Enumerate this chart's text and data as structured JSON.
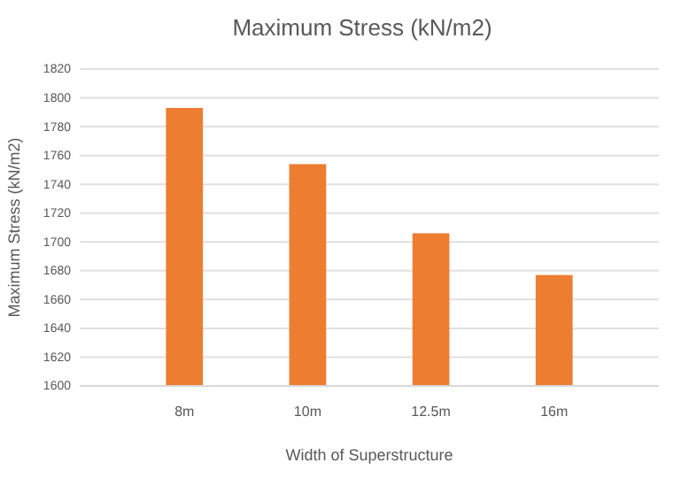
{
  "chart_data": {
    "type": "bar",
    "title": "Maximum Stress (kN/m2)",
    "xlabel": "Width of Superstructure",
    "ylabel": "Maximum Stress (kN/m2)",
    "categories": [
      "8m",
      "10m",
      "12.5m",
      "16m"
    ],
    "values": [
      1793,
      1754,
      1706,
      1677
    ],
    "color": "#ed7d31",
    "ylim": [
      1600,
      1820
    ],
    "yticks": [
      1600,
      1620,
      1640,
      1660,
      1680,
      1700,
      1720,
      1740,
      1760,
      1780,
      1800,
      1820
    ],
    "grid": "y"
  }
}
